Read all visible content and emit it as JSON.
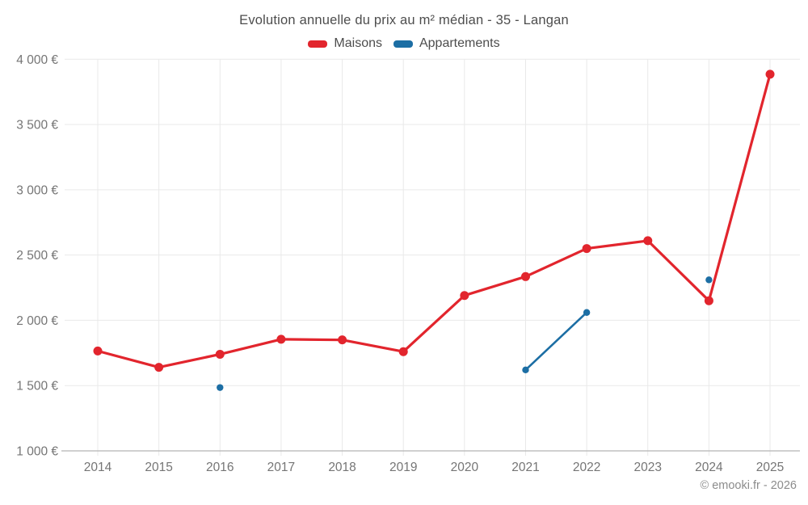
{
  "title": "Evolution annuelle du prix au m² médian - 35 - Langan",
  "legend": {
    "items": [
      {
        "label": "Maisons",
        "color": "#e2252d"
      },
      {
        "label": "Appartements",
        "color": "#1c6ea4"
      }
    ]
  },
  "footer": {
    "text": "© emooki.fr - 2026"
  },
  "colors": {
    "background": "#ffffff",
    "grid": "#e9e9e9",
    "axis_line": "#b5b5b5",
    "tick_text": "#757575",
    "title_text": "#4d4d4d",
    "legend_text": "#4d4d4d",
    "footer_text": "#8c8c8c",
    "maisons": "#e2252d",
    "appartements": "#1c6ea4"
  },
  "chart_data": {
    "type": "line",
    "title": "Evolution annuelle du prix au m² médian - 35 - Langan",
    "x": [
      2014,
      2015,
      2016,
      2017,
      2018,
      2019,
      2020,
      2021,
      2022,
      2023,
      2024,
      2025
    ],
    "series": [
      {
        "name": "Maisons",
        "color": "#e2252d",
        "values": [
          1765,
          1640,
          1740,
          1855,
          1850,
          1760,
          2190,
          2335,
          2550,
          2610,
          2150,
          3885
        ]
      },
      {
        "name": "Appartements",
        "color": "#1c6ea4",
        "values": [
          null,
          null,
          1485,
          null,
          null,
          null,
          null,
          1620,
          2060,
          null,
          2310,
          null
        ]
      }
    ],
    "xlabel": "",
    "ylabel": "",
    "ylim": [
      1000,
      4000
    ],
    "yticks": [
      1000,
      1500,
      2000,
      2500,
      3000,
      3500,
      4000
    ],
    "ytick_labels": [
      "1 000 €",
      "1 500 €",
      "2 000 €",
      "2 500 €",
      "3 000 €",
      "3 500 €",
      "4 000 €"
    ],
    "grid": true,
    "legend_position": "top"
  }
}
